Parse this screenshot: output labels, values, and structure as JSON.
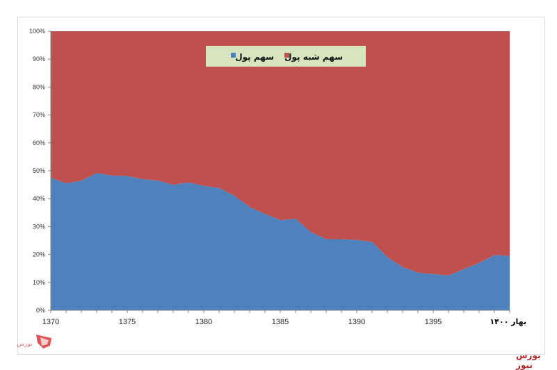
{
  "watermark": "بورس نیوز",
  "chart_data": {
    "type": "area",
    "stacked": "percent",
    "x": [
      1370,
      1371,
      1372,
      1373,
      1374,
      1375,
      1376,
      1377,
      1378,
      1379,
      1380,
      1381,
      1382,
      1383,
      1384,
      1385,
      1386,
      1387,
      1388,
      1389,
      1390,
      1391,
      1392,
      1393,
      1394,
      1395,
      1396,
      1397,
      1398,
      1399,
      1400
    ],
    "series": [
      {
        "name": "سهم پول",
        "color": "#4f81bd",
        "values": [
          47.5,
          45.5,
          46.5,
          49.2,
          48.3,
          48.1,
          47,
          46.5,
          45,
          45.8,
          44.6,
          43.8,
          41,
          37,
          34.5,
          32.3,
          32.8,
          28,
          25.5,
          25.5,
          25.2,
          24.5,
          19,
          15.5,
          13.5,
          13,
          12.5,
          14.8,
          17,
          19.8,
          19.5
        ]
      },
      {
        "name": "سهم شبه پول",
        "color": "#c0504d",
        "values": [
          52.5,
          54.5,
          53.5,
          50.8,
          51.7,
          51.9,
          53,
          53.5,
          55,
          54.2,
          55.4,
          56.2,
          59,
          63,
          65.5,
          67.7,
          67.2,
          72,
          74.5,
          74.5,
          74.8,
          75.5,
          81,
          84.5,
          86.5,
          87,
          87.5,
          85.2,
          83,
          80.2,
          80.5
        ]
      }
    ],
    "xlim": [
      1370,
      1400
    ],
    "ylim": [
      0,
      100
    ],
    "y_ticks": [
      "0%",
      "10%",
      "20%",
      "30%",
      "40%",
      "50%",
      "60%",
      "70%",
      "80%",
      "90%",
      "100%"
    ],
    "x_ticks": [
      {
        "value": 1370,
        "label": "1370"
      },
      {
        "value": 1375,
        "label": "1375"
      },
      {
        "value": 1380,
        "label": "1380"
      },
      {
        "value": 1385,
        "label": "1385"
      },
      {
        "value": 1390,
        "label": "1390"
      },
      {
        "value": 1395,
        "label": "1395"
      },
      {
        "value": 1400,
        "label": "بهار ۱۴۰۰"
      }
    ],
    "legend": {
      "position": "top-center",
      "background": "#d7e4bd"
    }
  }
}
